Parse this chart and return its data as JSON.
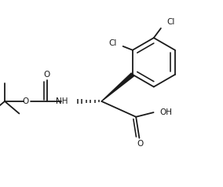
{
  "bg_color": "#ffffff",
  "line_color": "#1a1a1a",
  "line_width": 1.3,
  "font_size": 7.5,
  "figsize": [
    2.84,
    2.38
  ],
  "dpi": 100,
  "xlim": [
    0,
    10
  ],
  "ylim": [
    0,
    8.4
  ]
}
